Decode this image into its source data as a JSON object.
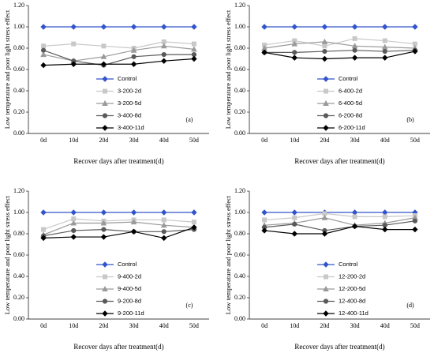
{
  "chart_data": [
    {
      "type": "line",
      "x_label": "Recover days after treatment(d)",
      "y_label": "Low temperature and poor light stress effect",
      "annotation": "(a)",
      "categories": [
        "0d",
        "10d",
        "20d",
        "30d",
        "40d",
        "50d"
      ],
      "ylim": [
        0,
        1.2
      ],
      "yticks": [
        {
          "value": 0,
          "label": "0.00"
        },
        {
          "value": 0.2,
          "label": "0.20"
        },
        {
          "value": 0.4,
          "label": "0.40"
        },
        {
          "value": 0.6,
          "label": "0.60"
        },
        {
          "value": 0.8,
          "label": "0.80"
        },
        {
          "value": 1.0,
          "label": "1.00"
        },
        {
          "value": 1.2,
          "label": "1.20"
        }
      ],
      "series": [
        {
          "name": "Control",
          "color": "#3355cc",
          "values": [
            1.0,
            1.0,
            1.0,
            1.0,
            1.0,
            1.0
          ]
        },
        {
          "name": "3-200-2d",
          "color": "#c8c8c8",
          "values": [
            0.82,
            0.84,
            0.82,
            0.8,
            0.86,
            0.84
          ]
        },
        {
          "name": "3-200-5d",
          "color": "#9a9a9a",
          "values": [
            0.74,
            0.68,
            0.72,
            0.78,
            0.82,
            0.79
          ]
        },
        {
          "name": "3-400-8d",
          "color": "#5a5a5a",
          "values": [
            0.78,
            0.68,
            0.64,
            0.72,
            0.74,
            0.74
          ]
        },
        {
          "name": "3-400-11d",
          "color": "#000000",
          "values": [
            0.64,
            0.65,
            0.65,
            0.65,
            0.68,
            0.7
          ]
        }
      ]
    },
    {
      "type": "line",
      "x_label": "Recover days after treatment(d)",
      "y_label": "Low temperature and poor light stress effect",
      "annotation": "(b)",
      "categories": [
        "0d",
        "10d",
        "20d",
        "30d",
        "40d",
        "50d"
      ],
      "ylim": [
        0,
        1.2
      ],
      "yticks": [
        {
          "value": 0,
          "label": "0.00"
        },
        {
          "value": 0.2,
          "label": "0.20"
        },
        {
          "value": 0.4,
          "label": "0.40"
        },
        {
          "value": 0.6,
          "label": "0.60"
        },
        {
          "value": 0.8,
          "label": "0.80"
        },
        {
          "value": 1.0,
          "label": "1.00"
        },
        {
          "value": 1.2,
          "label": "1.20"
        }
      ],
      "series": [
        {
          "name": "Control",
          "color": "#3355cc",
          "values": [
            1.0,
            1.0,
            1.0,
            1.0,
            1.0,
            1.0
          ]
        },
        {
          "name": "6-400-2d",
          "color": "#c8c8c8",
          "values": [
            0.83,
            0.87,
            0.82,
            0.89,
            0.87,
            0.84
          ]
        },
        {
          "name": "6-400-5d",
          "color": "#9a9a9a",
          "values": [
            0.8,
            0.84,
            0.86,
            0.82,
            0.81,
            0.8
          ]
        },
        {
          "name": "6-200-8d",
          "color": "#5a5a5a",
          "values": [
            0.76,
            0.76,
            0.77,
            0.78,
            0.77,
            0.78
          ]
        },
        {
          "name": "6-200-11d",
          "color": "#000000",
          "values": [
            0.76,
            0.71,
            0.7,
            0.71,
            0.71,
            0.77
          ]
        }
      ]
    },
    {
      "type": "line",
      "x_label": "Recover days after treatment(d)",
      "y_label": "Low temperature and poor light stress effect",
      "annotation": "(c)",
      "categories": [
        "0d",
        "10d",
        "20d",
        "30d",
        "40d",
        "50d"
      ],
      "ylim": [
        0,
        1.2
      ],
      "yticks": [
        {
          "value": 0,
          "label": "0.00"
        },
        {
          "value": 0.2,
          "label": "0.20"
        },
        {
          "value": 0.4,
          "label": "0.40"
        },
        {
          "value": 0.6,
          "label": "0.60"
        },
        {
          "value": 0.8,
          "label": "0.80"
        },
        {
          "value": 1.0,
          "label": "1.00"
        },
        {
          "value": 1.2,
          "label": "1.20"
        }
      ],
      "series": [
        {
          "name": "Control",
          "color": "#3355cc",
          "values": [
            1.0,
            1.0,
            1.0,
            1.0,
            1.0,
            1.0
          ]
        },
        {
          "name": "9-400-2d",
          "color": "#c8c8c8",
          "values": [
            0.84,
            0.94,
            0.92,
            0.93,
            0.93,
            0.91
          ]
        },
        {
          "name": "9-400-5d",
          "color": "#9a9a9a",
          "values": [
            0.79,
            0.9,
            0.9,
            0.91,
            0.88,
            0.86
          ]
        },
        {
          "name": "9-200-8d",
          "color": "#5a5a5a",
          "values": [
            0.78,
            0.83,
            0.84,
            0.82,
            0.82,
            0.84
          ]
        },
        {
          "name": "9-200-11d",
          "color": "#000000",
          "values": [
            0.76,
            0.77,
            0.77,
            0.82,
            0.76,
            0.86
          ]
        }
      ]
    },
    {
      "type": "line",
      "x_label": "Recover days after treatment(d)",
      "y_label": "Low temperature and poor light stress effect",
      "annotation": "(d)",
      "categories": [
        "0d",
        "10d",
        "20d",
        "30d",
        "40d",
        "50d"
      ],
      "ylim": [
        0,
        1.2
      ],
      "yticks": [
        {
          "value": 0,
          "label": "0.00"
        },
        {
          "value": 0.2,
          "label": "0.20"
        },
        {
          "value": 0.4,
          "label": "0.40"
        },
        {
          "value": 0.6,
          "label": "0.60"
        },
        {
          "value": 0.8,
          "label": "0.80"
        },
        {
          "value": 1.0,
          "label": "1.00"
        },
        {
          "value": 1.2,
          "label": "1.20"
        }
      ],
      "series": [
        {
          "name": "Control",
          "color": "#3355cc",
          "values": [
            1.0,
            1.0,
            1.0,
            1.0,
            1.0,
            1.0
          ]
        },
        {
          "name": "12-200-2d",
          "color": "#c8c8c8",
          "values": [
            0.93,
            0.95,
            0.99,
            0.96,
            0.96,
            0.97
          ]
        },
        {
          "name": "12-200-5d",
          "color": "#9a9a9a",
          "values": [
            0.88,
            0.9,
            0.95,
            0.88,
            0.9,
            0.95
          ]
        },
        {
          "name": "12-400-8d",
          "color": "#5a5a5a",
          "values": [
            0.86,
            0.89,
            0.83,
            0.87,
            0.88,
            0.92
          ]
        },
        {
          "name": "12-400-11d",
          "color": "#000000",
          "values": [
            0.83,
            0.8,
            0.8,
            0.87,
            0.84,
            0.84
          ]
        }
      ]
    }
  ]
}
